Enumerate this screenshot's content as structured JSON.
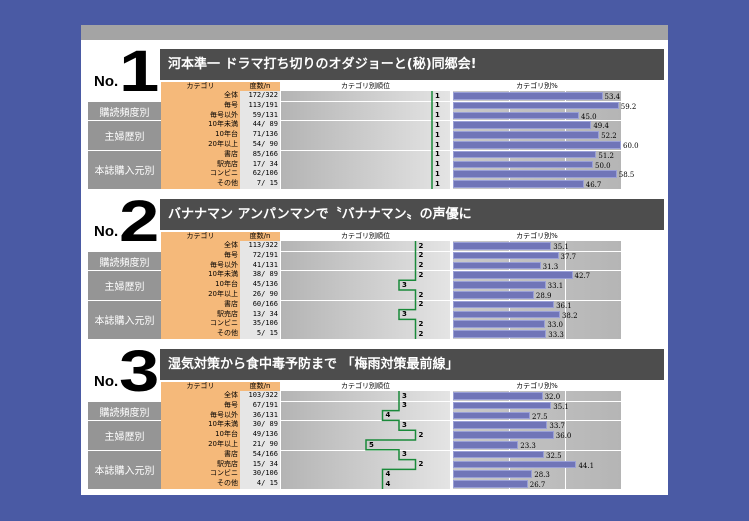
{
  "colors": {
    "background": "#4a5aa4",
    "title_bar": "#4d4d4d",
    "category_column": "#f5b97a",
    "group_label": "#959595",
    "bar": "#7075b8",
    "rank_line": "#1a8a3a"
  },
  "headers": {
    "category": "カテゴリ",
    "count": "度数/n",
    "rank": "カテゴリ別順位",
    "percent": "カテゴリ別%"
  },
  "groups": [
    {
      "label": "購読頻度別",
      "rows": [
        1,
        2
      ]
    },
    {
      "label": "主婦歴別",
      "rows": [
        3,
        5
      ]
    },
    {
      "label": "本誌購入元別",
      "rows": [
        6,
        9
      ]
    }
  ],
  "row_labels": [
    "全体",
    "毎号",
    "毎号以外",
    "10年未満",
    "10年台",
    "20年以上",
    "書店",
    "駅売店",
    "コンビニ",
    "その他"
  ],
  "rankings": [
    {
      "no_prefix": "No.",
      "number": "1",
      "title": "河本準一 ドラマ打ち切りのオダジョーと(秘)同郷会!",
      "counts": [
        "172/322",
        "113/191",
        "59/131",
        "44/ 89",
        "71/136",
        "54/ 90",
        "85/166",
        "17/ 34",
        "62/106",
        "7/ 15"
      ],
      "ranks": [
        1,
        1,
        1,
        1,
        1,
        1,
        1,
        1,
        1,
        1
      ],
      "percents": [
        53.4,
        59.2,
        45.0,
        49.4,
        52.2,
        60.0,
        51.2,
        50.0,
        58.5,
        46.7
      ]
    },
    {
      "no_prefix": "No.",
      "number": "2",
      "title": "バナナマン アンパンマンで〝バナナマン〟の声優に",
      "counts": [
        "113/322",
        "72/191",
        "41/131",
        "38/ 89",
        "45/136",
        "26/ 90",
        "60/166",
        "13/ 34",
        "35/106",
        "5/ 15"
      ],
      "ranks": [
        2,
        2,
        2,
        2,
        3,
        2,
        2,
        3,
        2,
        2
      ],
      "percents": [
        35.1,
        37.7,
        31.3,
        42.7,
        33.1,
        28.9,
        36.1,
        38.2,
        33.0,
        33.3
      ]
    },
    {
      "no_prefix": "No.",
      "number": "3",
      "title": "湿気対策から食中毒予防まで 「梅雨対策最前線」",
      "counts": [
        "103/322",
        "67/191",
        "36/131",
        "30/ 89",
        "49/136",
        "21/ 90",
        "54/166",
        "15/ 34",
        "30/106",
        "4/ 15"
      ],
      "ranks": [
        3,
        3,
        4,
        3,
        2,
        5,
        3,
        2,
        4,
        4
      ],
      "percents": [
        32.0,
        35.1,
        27.5,
        33.7,
        36.0,
        23.3,
        32.5,
        44.1,
        28.3,
        26.7
      ]
    }
  ]
}
